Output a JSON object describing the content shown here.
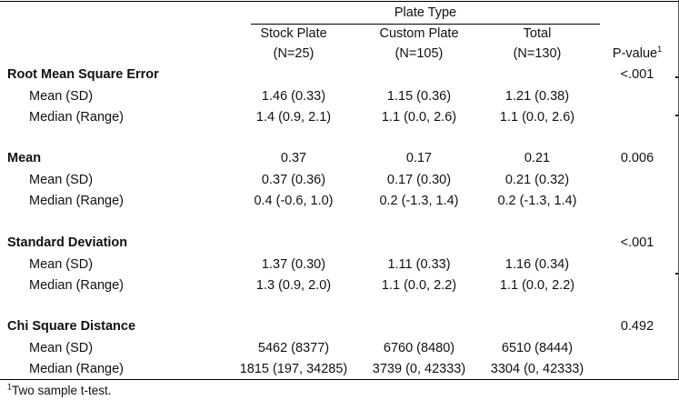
{
  "header": {
    "spanner": "Plate Type",
    "columns": [
      {
        "line1": "Stock Plate",
        "line2": "(N=25)"
      },
      {
        "line1": "Custom Plate",
        "line2": "(N=105)"
      },
      {
        "line1": "Total",
        "line2": "(N=130)"
      }
    ],
    "pvalue_label": "P-value",
    "pvalue_sup": "1"
  },
  "sections": [
    {
      "title": "Root Mean Square Error",
      "summary": [
        "",
        "",
        ""
      ],
      "pvalue": "<.001",
      "rows": [
        {
          "label": "Mean (SD)",
          "values": [
            "1.46 (0.33)",
            "1.15 (0.36)",
            "1.21 (0.38)"
          ]
        },
        {
          "label": "Median (Range)",
          "values": [
            "1.4 (0.9, 2.1)",
            "1.1 (0.0, 2.6)",
            "1.1 (0.0, 2.6)"
          ]
        }
      ]
    },
    {
      "title": "Mean",
      "summary": [
        "0.37",
        "0.17",
        "0.21"
      ],
      "pvalue": "0.006",
      "rows": [
        {
          "label": "Mean (SD)",
          "values": [
            "0.37 (0.36)",
            "0.17 (0.30)",
            "0.21 (0.32)"
          ]
        },
        {
          "label": "Median (Range)",
          "values": [
            "0.4 (-0.6, 1.0)",
            "0.2 (-1.3, 1.4)",
            "0.2 (-1.3, 1.4)"
          ]
        }
      ]
    },
    {
      "title": "Standard Deviation",
      "summary": [
        "",
        "",
        ""
      ],
      "pvalue": "<.001",
      "rows": [
        {
          "label": "Mean (SD)",
          "values": [
            "1.37 (0.30)",
            "1.11 (0.33)",
            "1.16 (0.34)"
          ]
        },
        {
          "label": "Median (Range)",
          "values": [
            "1.3 (0.9, 2.0)",
            "1.1 (0.0, 2.2)",
            "1.1 (0.0, 2.2)"
          ]
        }
      ]
    },
    {
      "title": "Chi Square Distance",
      "summary": [
        "",
        "",
        ""
      ],
      "pvalue": "0.492",
      "rows": [
        {
          "label": "Mean (SD)",
          "values": [
            "5462 (8377)",
            "6760 (8480)",
            "6510 (8444)"
          ]
        },
        {
          "label": "Median (Range)",
          "values": [
            "1815 (197, 34285)",
            "3739 (0, 42333)",
            "3304 (0, 42333)"
          ]
        }
      ]
    }
  ],
  "footnote": {
    "sup": "1",
    "text": "Two sample t-test."
  }
}
